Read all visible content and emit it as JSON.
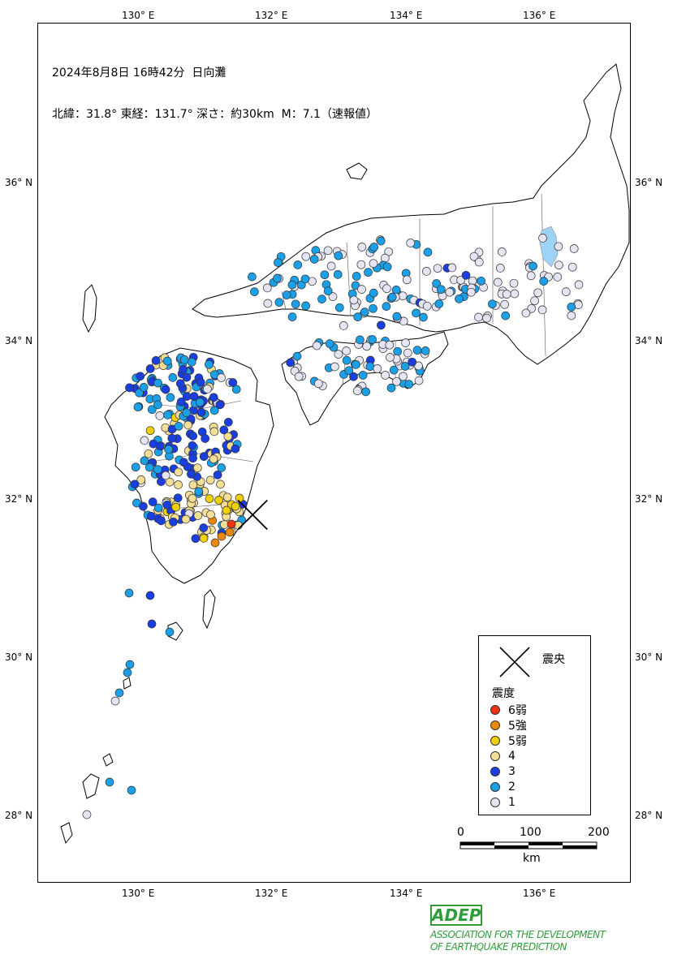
{
  "title": {
    "line1": "2024年8月8日 16時42分  日向灘",
    "line2": "北緯：31.8° 東経：131.7° 深さ：約30km  M：7.1（速報値）"
  },
  "axes": {
    "lon_labels": [
      "130° E",
      "132° E",
      "134° E",
      "136° E"
    ],
    "lat_labels": [
      "36° N",
      "34° N",
      "32° N",
      "30° N",
      "28° N"
    ]
  },
  "epicenter": {
    "lon": 131.7,
    "lat": 31.8
  },
  "legend": {
    "epicenter_label": "震央",
    "header": "震度",
    "items": [
      {
        "label": "6弱",
        "color": "#ee3311"
      },
      {
        "label": "5強",
        "color": "#ee8800"
      },
      {
        "label": "5弱",
        "color": "#f2d000"
      },
      {
        "label": "4",
        "color": "#f4dd95"
      },
      {
        "label": "3",
        "color": "#1a3ee0"
      },
      {
        "label": "2",
        "color": "#1aa0e8"
      },
      {
        "label": "1",
        "color": "#e4e4f2"
      }
    ]
  },
  "scale": {
    "ticks": [
      "0",
      "100",
      "200"
    ],
    "unit": "km"
  },
  "footer": {
    "logo": "ADEP",
    "line1": "ASSOCIATION FOR THE DEVELOPMENT",
    "line2": "OF EARTHQUAKE PREDICTION"
  }
}
